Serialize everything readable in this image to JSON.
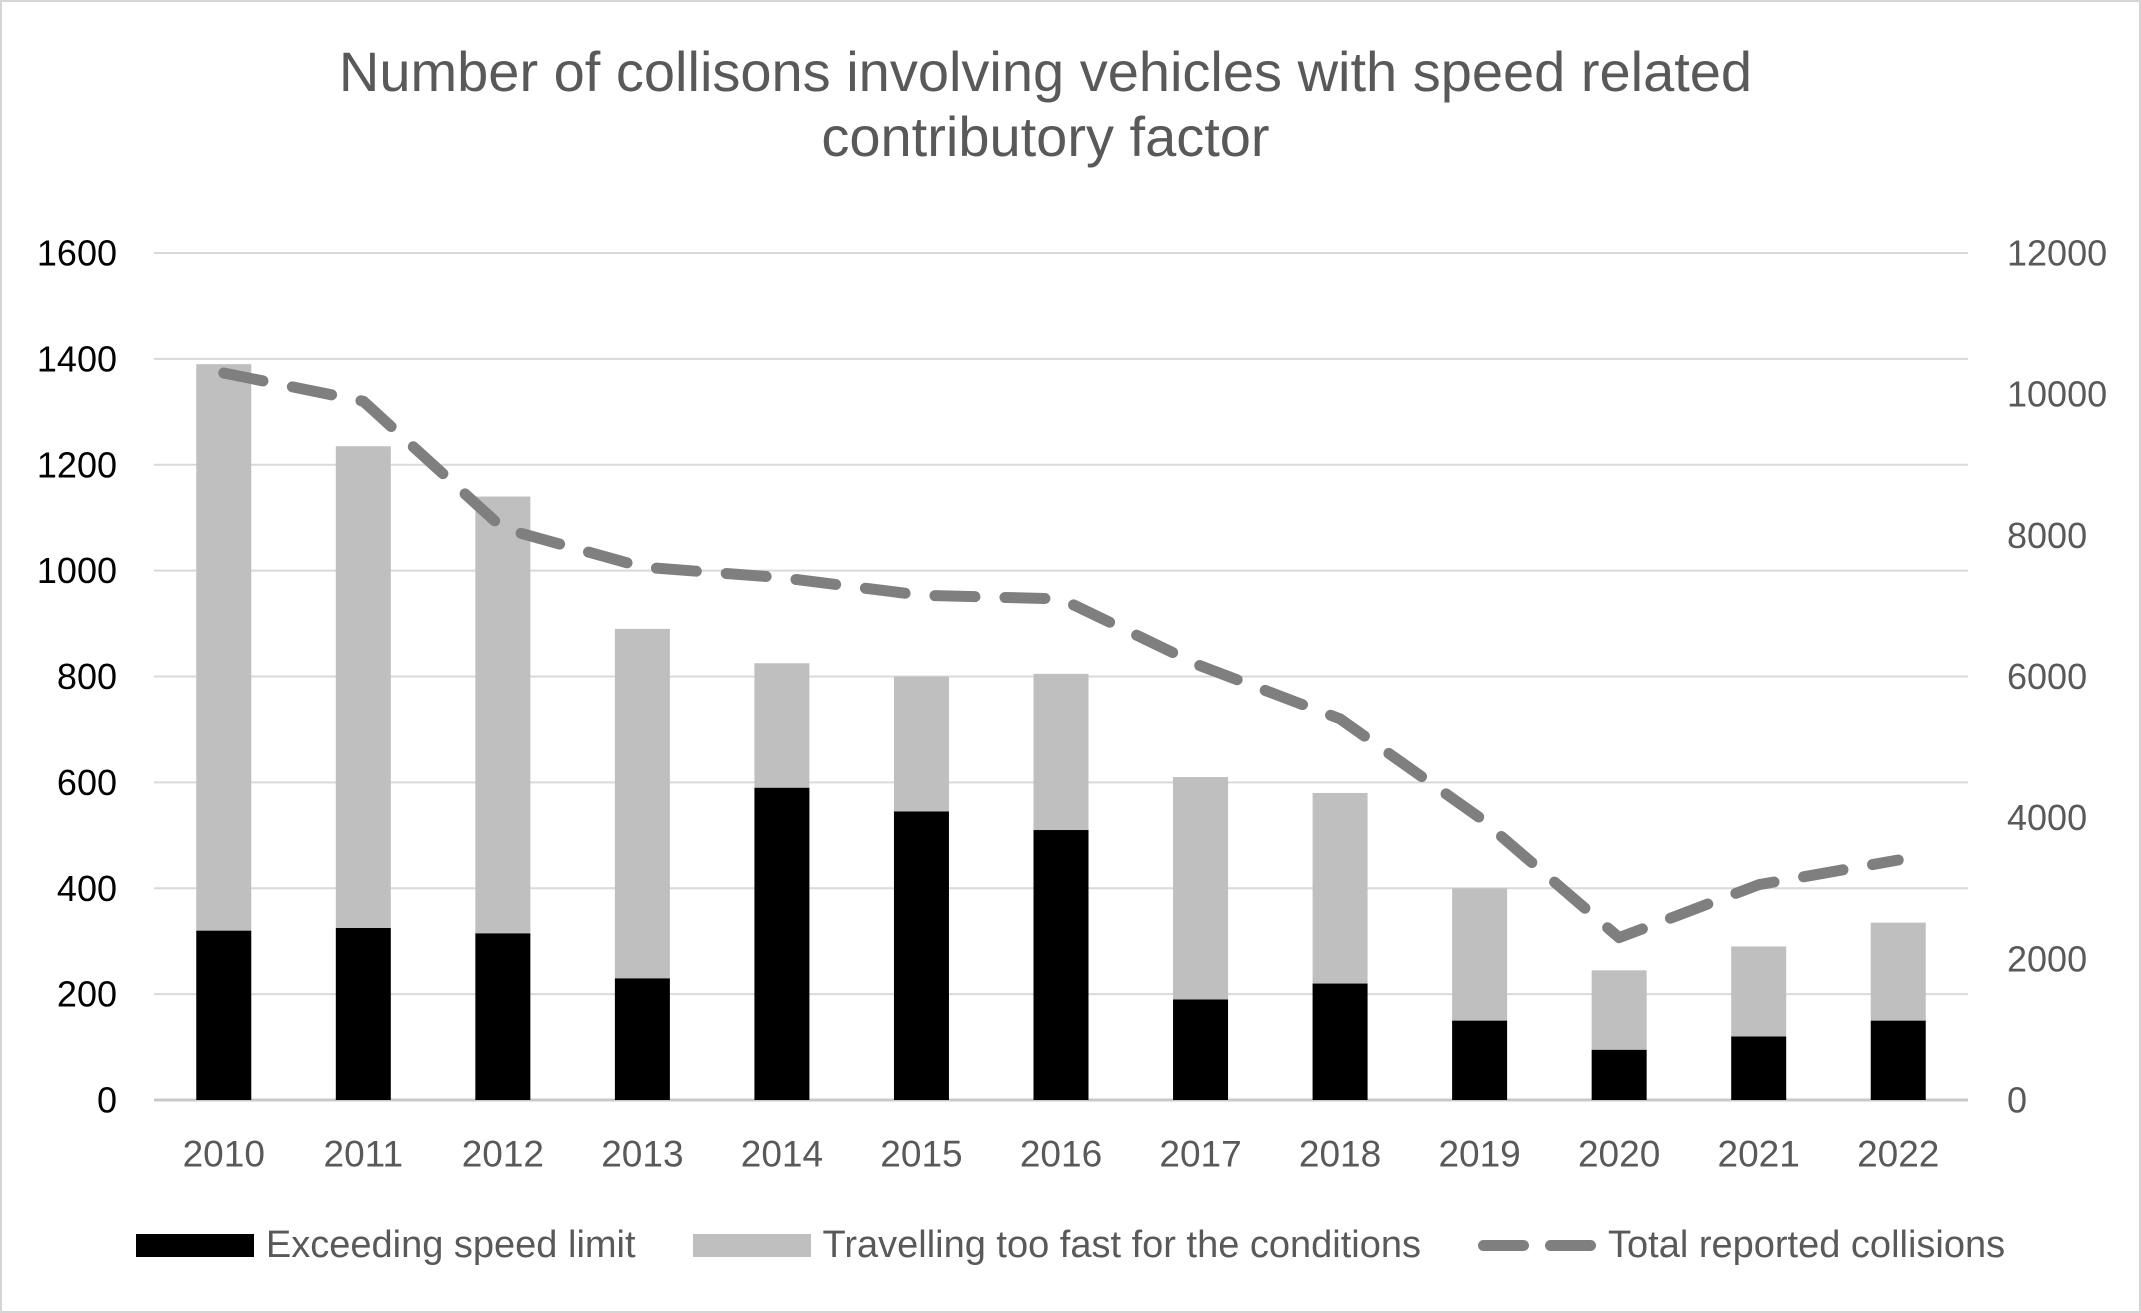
{
  "colors": {
    "background": "#FFFFFF",
    "canvas_border": "#D5D5D5",
    "bar_black": "#000000",
    "bar_gray": "#BFBFBF",
    "line_gray": "#7F7F7F",
    "gridline": "#D9D9D9",
    "axis_baseline": "#C9C9C9",
    "title_text": "#595959",
    "left_tick_text": "#000000",
    "right_tick_text": "#595959",
    "year_label_text": "#595959",
    "legend_text": "#595959"
  },
  "chart_data": {
    "type": "bar",
    "subtype": "stacked-bars-with-secondary-axis-line",
    "title": "Number of collisons involving vehicles with speed related contributory factor",
    "categories": [
      "2010",
      "2011",
      "2012",
      "2013",
      "2014",
      "2015",
      "2016",
      "2017",
      "2018",
      "2019",
      "2020",
      "2021",
      "2022"
    ],
    "series": [
      {
        "name": "Exceeding speed limit",
        "type": "bar",
        "stack": true,
        "axis": "primary",
        "color_key": "bar_black",
        "values": [
          320,
          325,
          315,
          230,
          590,
          545,
          510,
          190,
          220,
          150,
          95,
          120,
          150
        ]
      },
      {
        "name": "Travelling too fast for the conditions",
        "type": "bar",
        "stack": true,
        "axis": "primary",
        "color_key": "bar_gray",
        "values": [
          1070,
          910,
          825,
          660,
          235,
          255,
          295,
          420,
          360,
          250,
          150,
          170,
          185
        ]
      },
      {
        "name": "Total reported collisions",
        "type": "line",
        "dashed": true,
        "axis": "secondary",
        "color_key": "line_gray",
        "values": [
          10300,
          9900,
          8100,
          7550,
          7400,
          7150,
          7100,
          6150,
          5400,
          4000,
          2300,
          3050,
          3400
        ]
      }
    ],
    "stacked_bar_totals": [
      1390,
      1235,
      1140,
      890,
      825,
      800,
      805,
      610,
      580,
      400,
      245,
      290,
      335
    ],
    "y_left": {
      "min": 0,
      "max": 1600,
      "step": 200,
      "ticks": [
        0,
        200,
        400,
        600,
        800,
        1000,
        1200,
        1400,
        1600
      ]
    },
    "y_right": {
      "min": 0,
      "max": 12000,
      "step": 2000,
      "ticks": [
        0,
        2000,
        4000,
        6000,
        8000,
        10000,
        12000
      ]
    },
    "grid": true,
    "legend_position": "bottom"
  }
}
